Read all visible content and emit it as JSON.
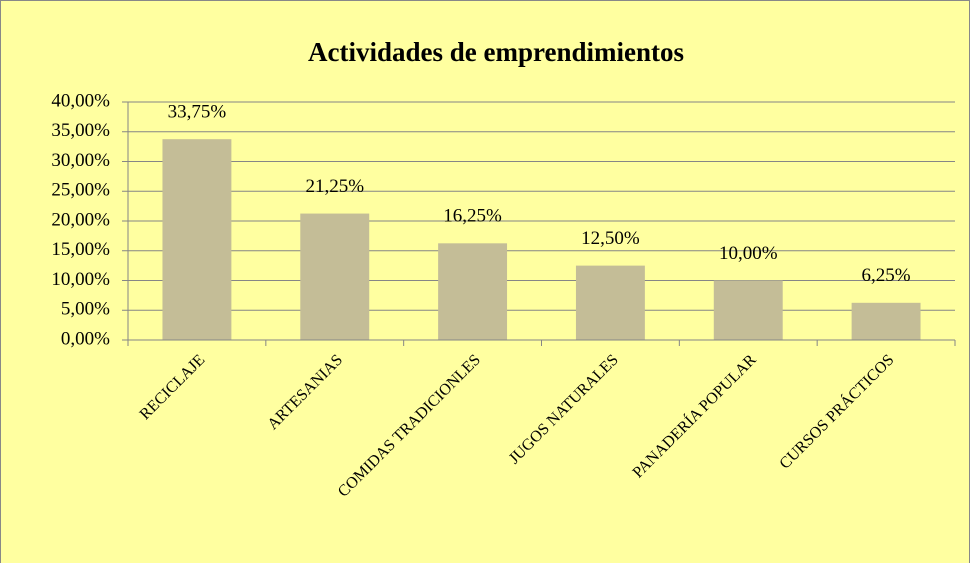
{
  "chart_data": {
    "type": "bar",
    "title": "Actividades de emprendimientos",
    "categories": [
      "RECICLAJE",
      "ARTESANIAS",
      "COMIDAS TRADICIONLES",
      "JUGOS NATURALES",
      "PANADERÍA POPULAR",
      "CURSOS PRÁCTICOS"
    ],
    "values": [
      33.75,
      21.25,
      16.25,
      12.5,
      10,
      6.25
    ],
    "value_labels": [
      "33,75%",
      "21,25%",
      "16,25%",
      "12,50%",
      "10,00%",
      "6,25%"
    ],
    "color": "#c4bd97",
    "ylim": [
      0,
      40
    ],
    "yticks": [
      {
        "value": 0,
        "label": "0,00%"
      },
      {
        "value": 5,
        "label": "5,00%"
      },
      {
        "value": 10,
        "label": "10,00%"
      },
      {
        "value": 15,
        "label": "15,00%"
      },
      {
        "value": 20,
        "label": "20,00%"
      },
      {
        "value": 25,
        "label": "25,00%"
      },
      {
        "value": 30,
        "label": "30,00%"
      },
      {
        "value": 35,
        "label": "35,00%"
      },
      {
        "value": 40,
        "label": "40,00%"
      }
    ],
    "grid": true
  }
}
